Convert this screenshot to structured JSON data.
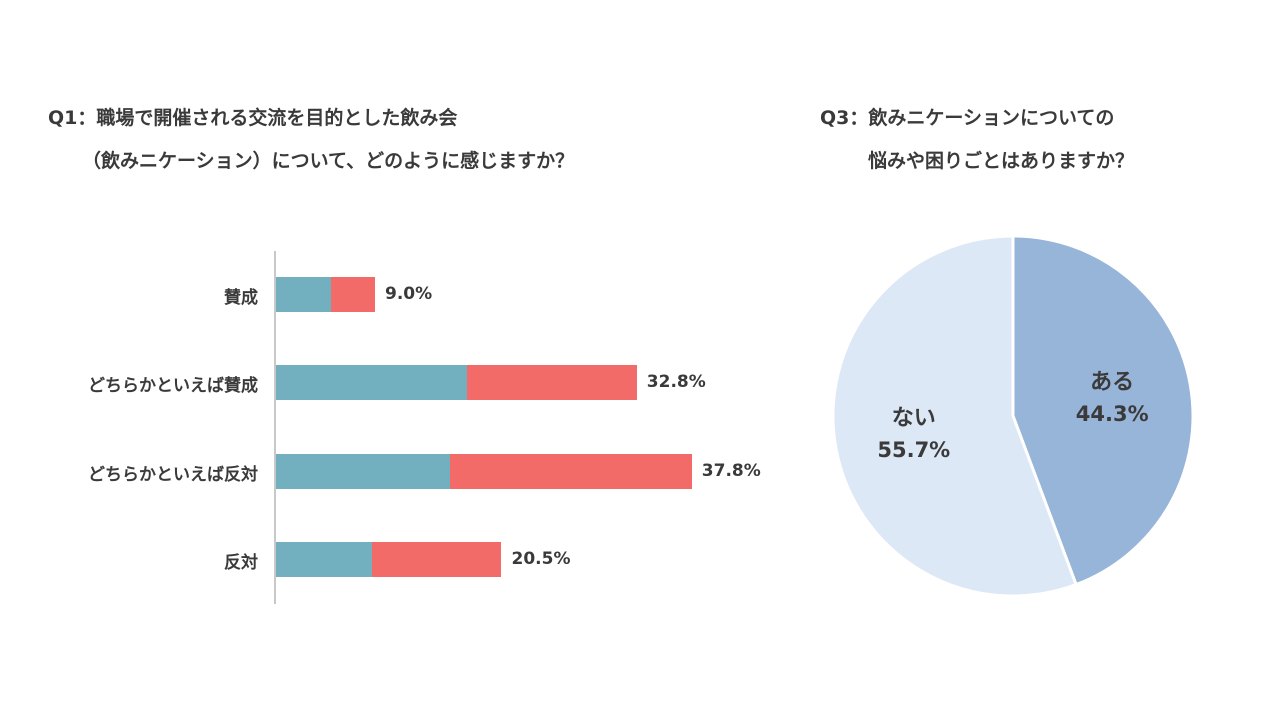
{
  "q1": {
    "title_line1": "Q1：職場で開催される交流を目的とした飲み会",
    "title_line2": "（飲みニケーション）について、どのように感じますか？"
  },
  "q3": {
    "title_line1": "Q3：飲みニケーションについての",
    "title_line2": "悩みや困りごとはありますか？"
  },
  "colors": {
    "bar_a": "#72b0bf",
    "bar_b": "#f26b68",
    "pie_yes": "#97b4d9",
    "pie_no": "#dde8f6",
    "text": "#3a3a3a"
  },
  "chart_data": [
    {
      "type": "bar",
      "orientation": "horizontal",
      "stacked": true,
      "categories": [
        "賛成",
        "どちらかといえば賛成",
        "どちらかといえば反対",
        "反対"
      ],
      "totals": [
        9.0,
        32.8,
        37.8,
        20.5
      ],
      "total_labels": [
        "9.0%",
        "32.8%",
        "37.8%",
        "20.5%"
      ],
      "series": [
        {
          "values": [
            5.0,
            17.4,
            15.8,
            8.7
          ]
        },
        {
          "values": [
            4.0,
            15.4,
            22.0,
            11.8
          ]
        }
      ],
      "xlim": [
        0,
        40
      ],
      "legend": "none",
      "grid": false
    },
    {
      "type": "pie",
      "labels": [
        "ある",
        "ない"
      ],
      "values": [
        44.3,
        55.7
      ],
      "value_labels": [
        "44.3%",
        "55.7%"
      ],
      "start": "top",
      "direction": "clockwise"
    }
  ]
}
